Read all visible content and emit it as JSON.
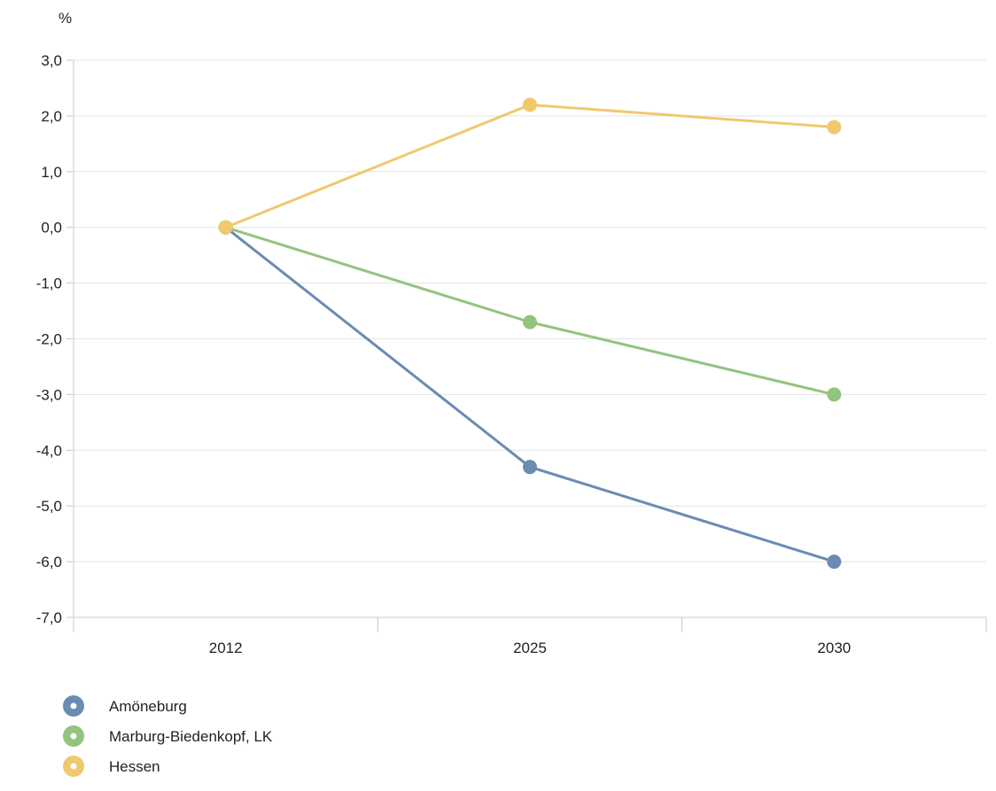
{
  "chart_data": {
    "type": "line",
    "title": "",
    "xlabel": "",
    "ylabel": "%",
    "x": [
      "2012",
      "2025",
      "2030"
    ],
    "ylim": [
      -7.0,
      3.0
    ],
    "yticks": [
      "3,0",
      "2,0",
      "1,0",
      "0,0",
      "-1,0",
      "-2,0",
      "-3,0",
      "-4,0",
      "-5,0",
      "-6,0",
      "-7,0"
    ],
    "grid": true,
    "legend_position": "bottom-left",
    "series": [
      {
        "name": "Amöneburg",
        "color": "#6b8bb3",
        "values": [
          0.0,
          -4.3,
          -6.0
        ]
      },
      {
        "name": "Marburg-Biedenkopf, LK",
        "color": "#93c47d",
        "values": [
          0.0,
          -1.7,
          -3.0
        ]
      },
      {
        "name": "Hessen",
        "color": "#f0c96e",
        "values": [
          0.0,
          2.2,
          1.8
        ]
      }
    ]
  }
}
